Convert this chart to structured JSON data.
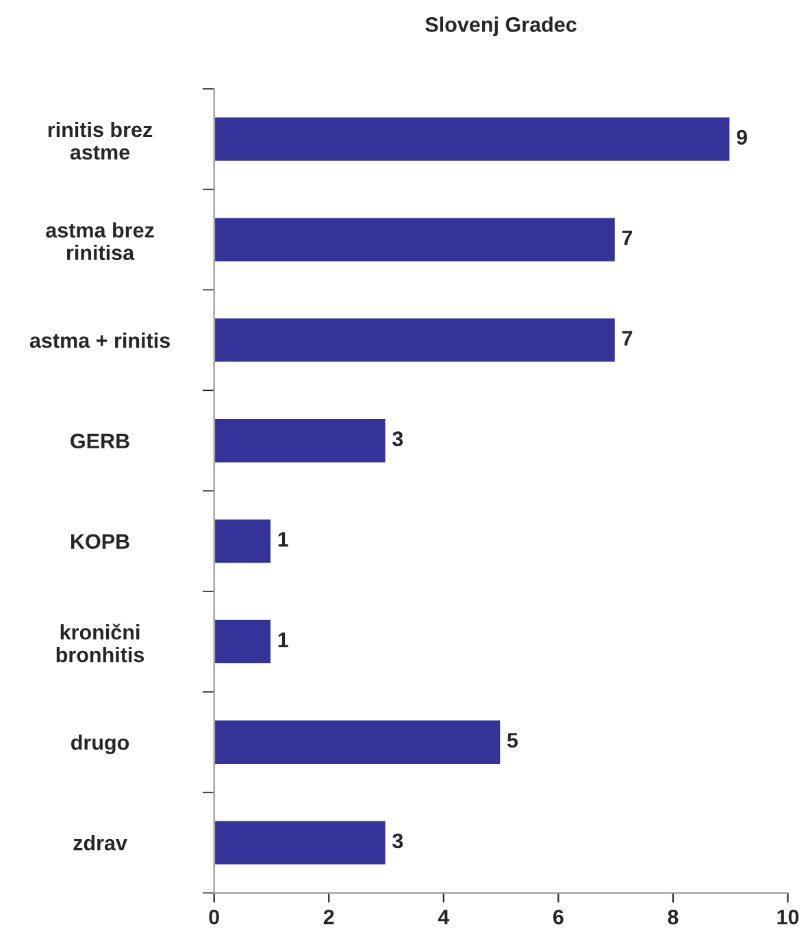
{
  "chart_data": {
    "type": "bar",
    "orientation": "horizontal",
    "title": "Slovenj Gradec",
    "categories": [
      "rinitis brez\nastme",
      "astma brez\nrinitisa",
      "astma + rinitis",
      "GERB",
      "KOPB",
      "kronični\nbronhitis",
      "drugo",
      "zdrav"
    ],
    "values": [
      9,
      7,
      7,
      3,
      1,
      1,
      5,
      3
    ],
    "color": "#333399",
    "xlim": [
      0,
      10
    ],
    "xticks": [
      0,
      2,
      4,
      6,
      8,
      10
    ],
    "data_labels": true,
    "grid": false
  }
}
